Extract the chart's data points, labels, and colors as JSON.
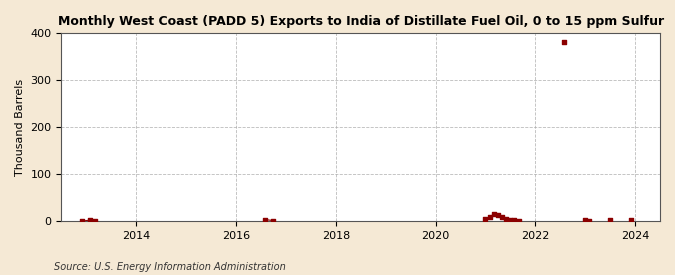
{
  "title": "Monthly West Coast (PADD 5) Exports to India of Distillate Fuel Oil, 0 to 15 ppm Sulfur",
  "ylabel": "Thousand Barrels",
  "source": "Source: U.S. Energy Information Administration",
  "background_color": "#f5e9d5",
  "plot_bg_color": "#ffffff",
  "marker_color": "#8b0000",
  "line_color": "#8b0000",
  "xlim_start": 2012.5,
  "xlim_end": 2024.5,
  "ylim": [
    0,
    400
  ],
  "yticks": [
    0,
    100,
    200,
    300,
    400
  ],
  "xticks": [
    2014,
    2016,
    2018,
    2020,
    2022,
    2024
  ],
  "data_points_x": [
    2012.917,
    2013.083,
    2013.167,
    2016.583,
    2016.75,
    2021.0,
    2021.083,
    2021.167,
    2021.25,
    2021.333,
    2021.417,
    2021.5,
    2021.583,
    2021.667,
    2022.583,
    2023.0,
    2023.083,
    2023.5,
    2023.917
  ],
  "data_points_y": [
    0,
    2,
    1,
    3,
    1,
    5,
    8,
    15,
    12,
    8,
    5,
    3,
    2,
    1,
    381,
    2,
    1,
    3,
    2
  ]
}
